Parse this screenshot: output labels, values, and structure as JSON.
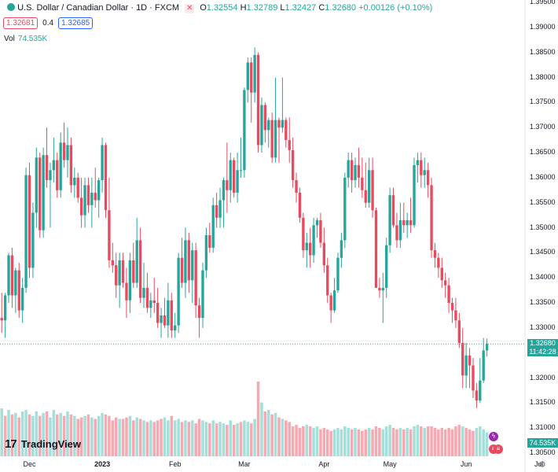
{
  "header": {
    "symbol_line": "U.S. Dollar / Canadian Dollar · 1D · FXCM",
    "close_icon": "x-icon",
    "o_label": "O",
    "o_value": "1.32554",
    "h_label": "H",
    "h_value": "1.32789",
    "l_label": "L",
    "l_value": "1.32427",
    "c_label": "C",
    "c_value": "1.32680",
    "change": "+0.00126 (+0.10%)"
  },
  "quote": {
    "bid": "1.32681",
    "spread": "0.4",
    "ask": "1.32685"
  },
  "volume": {
    "label": "Vol",
    "value": "74.535K"
  },
  "logo": {
    "mark": "17",
    "text": "TradingView"
  },
  "price_tag": {
    "price": "1.32680",
    "countdown": "11:42:28"
  },
  "vol_tag": "74.535K",
  "colors": {
    "up": "#26a69a",
    "down": "#e84a5f",
    "up_vol": "#a5dfd9",
    "down_vol": "#f7a9b2"
  },
  "chart_data": {
    "type": "candlestick",
    "y_range": [
      1.305,
      1.395
    ],
    "y_ticks": [
      "1.39500",
      "1.39000",
      "1.38500",
      "1.38000",
      "1.37500",
      "1.37000",
      "1.36500",
      "1.36000",
      "1.35500",
      "1.35000",
      "1.34500",
      "1.34000",
      "1.33500",
      "1.33000",
      "1.32500",
      "1.32000",
      "1.31500",
      "1.31000",
      "1.30500"
    ],
    "x_labels": [
      {
        "label": "Dec",
        "bar": 8,
        "bold": false
      },
      {
        "label": "2023",
        "bar": 29,
        "bold": true
      },
      {
        "label": "Feb",
        "bar": 50,
        "bold": false
      },
      {
        "label": "Mar",
        "bar": 70,
        "bold": false
      },
      {
        "label": "Apr",
        "bar": 93,
        "bold": false
      },
      {
        "label": "May",
        "bar": 112,
        "bold": false
      },
      {
        "label": "Jun",
        "bar": 134,
        "bold": false
      },
      {
        "label": "Jul",
        "bar": 155,
        "bold": false
      }
    ],
    "last_price": 1.3268,
    "candles": [
      [
        1.332,
        1.337,
        1.329,
        1.3315
      ],
      [
        1.3315,
        1.337,
        1.328,
        1.3365
      ],
      [
        1.3365,
        1.345,
        1.335,
        1.3445
      ],
      [
        1.3445,
        1.346,
        1.334,
        1.3365
      ],
      [
        1.3365,
        1.342,
        1.333,
        1.3415
      ],
      [
        1.3415,
        1.343,
        1.332,
        1.3335
      ],
      [
        1.3335,
        1.34,
        1.331,
        1.338
      ],
      [
        1.338,
        1.362,
        1.337,
        1.3605
      ],
      [
        1.3605,
        1.363,
        1.34,
        1.342
      ],
      [
        1.342,
        1.355,
        1.34,
        1.353
      ],
      [
        1.353,
        1.366,
        1.35,
        1.364
      ],
      [
        1.364,
        1.365,
        1.348,
        1.3495
      ],
      [
        1.3495,
        1.366,
        1.348,
        1.3645
      ],
      [
        1.3645,
        1.37,
        1.358,
        1.3595
      ],
      [
        1.3595,
        1.363,
        1.35,
        1.3615
      ],
      [
        1.3615,
        1.368,
        1.359,
        1.3635
      ],
      [
        1.3635,
        1.365,
        1.356,
        1.3575
      ],
      [
        1.3575,
        1.369,
        1.356,
        1.367
      ],
      [
        1.367,
        1.371,
        1.362,
        1.3635
      ],
      [
        1.3635,
        1.37,
        1.36,
        1.3665
      ],
      [
        1.3665,
        1.368,
        1.357,
        1.3585
      ],
      [
        1.3585,
        1.362,
        1.356,
        1.36
      ],
      [
        1.36,
        1.361,
        1.355,
        1.356
      ],
      [
        1.356,
        1.36,
        1.35,
        1.3525
      ],
      [
        1.3525,
        1.36,
        1.35,
        1.3585
      ],
      [
        1.3585,
        1.36,
        1.353,
        1.3545
      ],
      [
        1.3545,
        1.36,
        1.35,
        1.357
      ],
      [
        1.357,
        1.362,
        1.354,
        1.3555
      ],
      [
        1.3555,
        1.36,
        1.352,
        1.3595
      ],
      [
        1.3595,
        1.368,
        1.357,
        1.3665
      ],
      [
        1.3665,
        1.367,
        1.352,
        1.3535
      ],
      [
        1.3535,
        1.36,
        1.342,
        1.3435
      ],
      [
        1.3435,
        1.347,
        1.341,
        1.3425
      ],
      [
        1.3425,
        1.345,
        1.336,
        1.3385
      ],
      [
        1.3385,
        1.345,
        1.334,
        1.3435
      ],
      [
        1.3435,
        1.345,
        1.338,
        1.339
      ],
      [
        1.339,
        1.342,
        1.332,
        1.3355
      ],
      [
        1.3355,
        1.345,
        1.333,
        1.3435
      ],
      [
        1.3435,
        1.347,
        1.338,
        1.339
      ],
      [
        1.339,
        1.352,
        1.338,
        1.3475
      ],
      [
        1.3475,
        1.35,
        1.335,
        1.336
      ],
      [
        1.336,
        1.343,
        1.334,
        1.338
      ],
      [
        1.338,
        1.341,
        1.333,
        1.334
      ],
      [
        1.334,
        1.337,
        1.332,
        1.3355
      ],
      [
        1.3355,
        1.34,
        1.333,
        1.335
      ],
      [
        1.335,
        1.338,
        1.33,
        1.331
      ],
      [
        1.331,
        1.334,
        1.328,
        1.3325
      ],
      [
        1.3325,
        1.336,
        1.33,
        1.3305
      ],
      [
        1.3305,
        1.339,
        1.328,
        1.3355
      ],
      [
        1.3355,
        1.337,
        1.328,
        1.3295
      ],
      [
        1.3295,
        1.333,
        1.328,
        1.3305
      ],
      [
        1.3305,
        1.345,
        1.329,
        1.344
      ],
      [
        1.344,
        1.348,
        1.338,
        1.339
      ],
      [
        1.339,
        1.35,
        1.336,
        1.3475
      ],
      [
        1.3475,
        1.349,
        1.337,
        1.3395
      ],
      [
        1.3395,
        1.347,
        1.335,
        1.3455
      ],
      [
        1.3455,
        1.347,
        1.332,
        1.3345
      ],
      [
        1.3345,
        1.336,
        1.328,
        1.332
      ],
      [
        1.332,
        1.343,
        1.33,
        1.3415
      ],
      [
        1.3415,
        1.35,
        1.34,
        1.3485
      ],
      [
        1.3485,
        1.351,
        1.345,
        1.346
      ],
      [
        1.346,
        1.356,
        1.345,
        1.3545
      ],
      [
        1.3545,
        1.357,
        1.35,
        1.352
      ],
      [
        1.352,
        1.358,
        1.35,
        1.3555
      ],
      [
        1.3555,
        1.36,
        1.35,
        1.3595
      ],
      [
        1.3595,
        1.367,
        1.353,
        1.3575
      ],
      [
        1.3575,
        1.365,
        1.355,
        1.3635
      ],
      [
        1.3635,
        1.364,
        1.356,
        1.357
      ],
      [
        1.357,
        1.365,
        1.355,
        1.3615
      ],
      [
        1.3615,
        1.368,
        1.36,
        1.3615
      ],
      [
        1.3615,
        1.378,
        1.36,
        1.3775
      ],
      [
        1.3775,
        1.384,
        1.375,
        1.383
      ],
      [
        1.383,
        1.384,
        1.371,
        1.377
      ],
      [
        1.377,
        1.386,
        1.375,
        1.3845
      ],
      [
        1.3845,
        1.385,
        1.365,
        1.3665
      ],
      [
        1.3665,
        1.376,
        1.365,
        1.3745
      ],
      [
        1.3745,
        1.375,
        1.367,
        1.3695
      ],
      [
        1.3695,
        1.372,
        1.366,
        1.3715
      ],
      [
        1.3715,
        1.373,
        1.363,
        1.364
      ],
      [
        1.364,
        1.38,
        1.363,
        1.3715
      ],
      [
        1.3715,
        1.372,
        1.363,
        1.37
      ],
      [
        1.37,
        1.38,
        1.369,
        1.3715
      ],
      [
        1.3715,
        1.372,
        1.366,
        1.3675
      ],
      [
        1.3675,
        1.372,
        1.363,
        1.3655
      ],
      [
        1.3655,
        1.368,
        1.358,
        1.3595
      ],
      [
        1.3595,
        1.361,
        1.355,
        1.357
      ],
      [
        1.357,
        1.358,
        1.351,
        1.352
      ],
      [
        1.352,
        1.353,
        1.344,
        1.3455
      ],
      [
        1.3455,
        1.349,
        1.342,
        1.347
      ],
      [
        1.347,
        1.35,
        1.342,
        1.3445
      ],
      [
        1.3445,
        1.352,
        1.343,
        1.3505
      ],
      [
        1.3505,
        1.352,
        1.348,
        1.3515
      ],
      [
        1.3515,
        1.353,
        1.346,
        1.347
      ],
      [
        1.347,
        1.35,
        1.341,
        1.3425
      ],
      [
        1.3425,
        1.344,
        1.335,
        1.3365
      ],
      [
        1.3365,
        1.337,
        1.331,
        1.3335
      ],
      [
        1.3335,
        1.34,
        1.333,
        1.3375
      ],
      [
        1.3375,
        1.345,
        1.337,
        1.344
      ],
      [
        1.344,
        1.349,
        1.342,
        1.3475
      ],
      [
        1.3475,
        1.361,
        1.346,
        1.36
      ],
      [
        1.36,
        1.365,
        1.358,
        1.3635
      ],
      [
        1.3635,
        1.365,
        1.357,
        1.3595
      ],
      [
        1.3595,
        1.364,
        1.358,
        1.3625
      ],
      [
        1.3625,
        1.366,
        1.358,
        1.36
      ],
      [
        1.36,
        1.364,
        1.356,
        1.3575
      ],
      [
        1.3575,
        1.363,
        1.354,
        1.355
      ],
      [
        1.355,
        1.364,
        1.354,
        1.3615
      ],
      [
        1.3615,
        1.364,
        1.352,
        1.3535
      ],
      [
        1.3535,
        1.354,
        1.338,
        1.338
      ],
      [
        1.338,
        1.34,
        1.336,
        1.3375
      ],
      [
        1.3375,
        1.341,
        1.331,
        1.338
      ],
      [
        1.338,
        1.348,
        1.336,
        1.3465
      ],
      [
        1.3465,
        1.358,
        1.345,
        1.3565
      ],
      [
        1.3565,
        1.358,
        1.35,
        1.3505
      ],
      [
        1.3505,
        1.353,
        1.346,
        1.3475
      ],
      [
        1.3475,
        1.355,
        1.346,
        1.3515
      ],
      [
        1.3515,
        1.355,
        1.349,
        1.3505
      ],
      [
        1.3505,
        1.353,
        1.348,
        1.3515
      ],
      [
        1.3515,
        1.356,
        1.349,
        1.3505
      ],
      [
        1.3505,
        1.364,
        1.35,
        1.3625
      ],
      [
        1.3625,
        1.365,
        1.359,
        1.3635
      ],
      [
        1.3635,
        1.365,
        1.358,
        1.3605
      ],
      [
        1.3605,
        1.364,
        1.358,
        1.3615
      ],
      [
        1.3615,
        1.363,
        1.356,
        1.3585
      ],
      [
        1.3585,
        1.36,
        1.344,
        1.3455
      ],
      [
        1.3455,
        1.347,
        1.342,
        1.344
      ],
      [
        1.344,
        1.345,
        1.34,
        1.342
      ],
      [
        1.342,
        1.344,
        1.338,
        1.3395
      ],
      [
        1.3395,
        1.341,
        1.336,
        1.3385
      ],
      [
        1.3385,
        1.34,
        1.333,
        1.335
      ],
      [
        1.335,
        1.336,
        1.331,
        1.3335
      ],
      [
        1.3335,
        1.336,
        1.33,
        1.3315
      ],
      [
        1.3315,
        1.333,
        1.326,
        1.327
      ],
      [
        1.327,
        1.33,
        1.318,
        1.3205
      ],
      [
        1.3205,
        1.327,
        1.318,
        1.3245
      ],
      [
        1.3245,
        1.326,
        1.318,
        1.3225
      ],
      [
        1.3225,
        1.324,
        1.316,
        1.3175
      ],
      [
        1.3175,
        1.319,
        1.314,
        1.3155
      ],
      [
        1.3155,
        1.324,
        1.315,
        1.3195
      ],
      [
        1.3195,
        1.328,
        1.319,
        1.3255
      ],
      [
        1.3255,
        1.3279,
        1.3243,
        1.3268
      ]
    ],
    "volume": [
      [
        0.32,
        1
      ],
      [
        0.27,
        0
      ],
      [
        0.31,
        1
      ],
      [
        0.28,
        0
      ],
      [
        0.29,
        1
      ],
      [
        0.26,
        0
      ],
      [
        0.3,
        1
      ],
      [
        0.31,
        1
      ],
      [
        0.28,
        0
      ],
      [
        0.27,
        1
      ],
      [
        0.3,
        1
      ],
      [
        0.27,
        0
      ],
      [
        0.29,
        1
      ],
      [
        0.3,
        0
      ],
      [
        0.26,
        1
      ],
      [
        0.31,
        1
      ],
      [
        0.28,
        0
      ],
      [
        0.29,
        1
      ],
      [
        0.27,
        0
      ],
      [
        0.3,
        1
      ],
      [
        0.28,
        0
      ],
      [
        0.27,
        1
      ],
      [
        0.25,
        0
      ],
      [
        0.26,
        0
      ],
      [
        0.27,
        1
      ],
      [
        0.28,
        0
      ],
      [
        0.26,
        1
      ],
      [
        0.25,
        0
      ],
      [
        0.27,
        1
      ],
      [
        0.29,
        1
      ],
      [
        0.28,
        0
      ],
      [
        0.27,
        0
      ],
      [
        0.24,
        0
      ],
      [
        0.26,
        0
      ],
      [
        0.25,
        1
      ],
      [
        0.25,
        0
      ],
      [
        0.26,
        0
      ],
      [
        0.27,
        1
      ],
      [
        0.24,
        0
      ],
      [
        0.26,
        1
      ],
      [
        0.25,
        0
      ],
      [
        0.24,
        1
      ],
      [
        0.23,
        0
      ],
      [
        0.24,
        1
      ],
      [
        0.23,
        0
      ],
      [
        0.24,
        0
      ],
      [
        0.25,
        0
      ],
      [
        0.26,
        1
      ],
      [
        0.24,
        1
      ],
      [
        0.27,
        0
      ],
      [
        0.24,
        1
      ],
      [
        0.25,
        1
      ],
      [
        0.23,
        0
      ],
      [
        0.24,
        1
      ],
      [
        0.23,
        0
      ],
      [
        0.24,
        1
      ],
      [
        0.22,
        0
      ],
      [
        0.25,
        0
      ],
      [
        0.24,
        1
      ],
      [
        0.23,
        1
      ],
      [
        0.22,
        0
      ],
      [
        0.24,
        1
      ],
      [
        0.22,
        0
      ],
      [
        0.23,
        1
      ],
      [
        0.22,
        1
      ],
      [
        0.21,
        0
      ],
      [
        0.24,
        1
      ],
      [
        0.21,
        0
      ],
      [
        0.22,
        1
      ],
      [
        0.23,
        0
      ],
      [
        0.24,
        1
      ],
      [
        0.23,
        1
      ],
      [
        0.22,
        0
      ],
      [
        0.25,
        1
      ],
      [
        0.5,
        0
      ],
      [
        0.36,
        1
      ],
      [
        0.3,
        0
      ],
      [
        0.31,
        1
      ],
      [
        0.28,
        0
      ],
      [
        0.29,
        1
      ],
      [
        0.26,
        0
      ],
      [
        0.25,
        1
      ],
      [
        0.24,
        0
      ],
      [
        0.23,
        0
      ],
      [
        0.2,
        0
      ],
      [
        0.21,
        0
      ],
      [
        0.19,
        0
      ],
      [
        0.2,
        0
      ],
      [
        0.21,
        1
      ],
      [
        0.2,
        0
      ],
      [
        0.19,
        1
      ],
      [
        0.2,
        1
      ],
      [
        0.18,
        0
      ],
      [
        0.19,
        0
      ],
      [
        0.18,
        0
      ],
      [
        0.17,
        0
      ],
      [
        0.18,
        1
      ],
      [
        0.19,
        1
      ],
      [
        0.18,
        1
      ],
      [
        0.2,
        1
      ],
      [
        0.19,
        1
      ],
      [
        0.18,
        0
      ],
      [
        0.19,
        1
      ],
      [
        0.18,
        0
      ],
      [
        0.17,
        0
      ],
      [
        0.18,
        0
      ],
      [
        0.19,
        1
      ],
      [
        0.18,
        0
      ],
      [
        0.2,
        0
      ],
      [
        0.19,
        0
      ],
      [
        0.18,
        1
      ],
      [
        0.2,
        1
      ],
      [
        0.21,
        1
      ],
      [
        0.19,
        0
      ],
      [
        0.18,
        0
      ],
      [
        0.19,
        1
      ],
      [
        0.18,
        0
      ],
      [
        0.19,
        1
      ],
      [
        0.18,
        0
      ],
      [
        0.2,
        1
      ],
      [
        0.21,
        1
      ],
      [
        0.2,
        0
      ],
      [
        0.19,
        1
      ],
      [
        0.2,
        0
      ],
      [
        0.2,
        0
      ],
      [
        0.19,
        0
      ],
      [
        0.18,
        0
      ],
      [
        0.19,
        0
      ],
      [
        0.18,
        0
      ],
      [
        0.19,
        0
      ],
      [
        0.18,
        0
      ],
      [
        0.2,
        0
      ],
      [
        0.21,
        0
      ],
      [
        0.2,
        1
      ],
      [
        0.19,
        0
      ],
      [
        0.18,
        0
      ],
      [
        0.17,
        0
      ],
      [
        0.19,
        1
      ],
      [
        0.2,
        1
      ],
      [
        0.18,
        1
      ],
      [
        0.16,
        1
      ]
    ]
  }
}
